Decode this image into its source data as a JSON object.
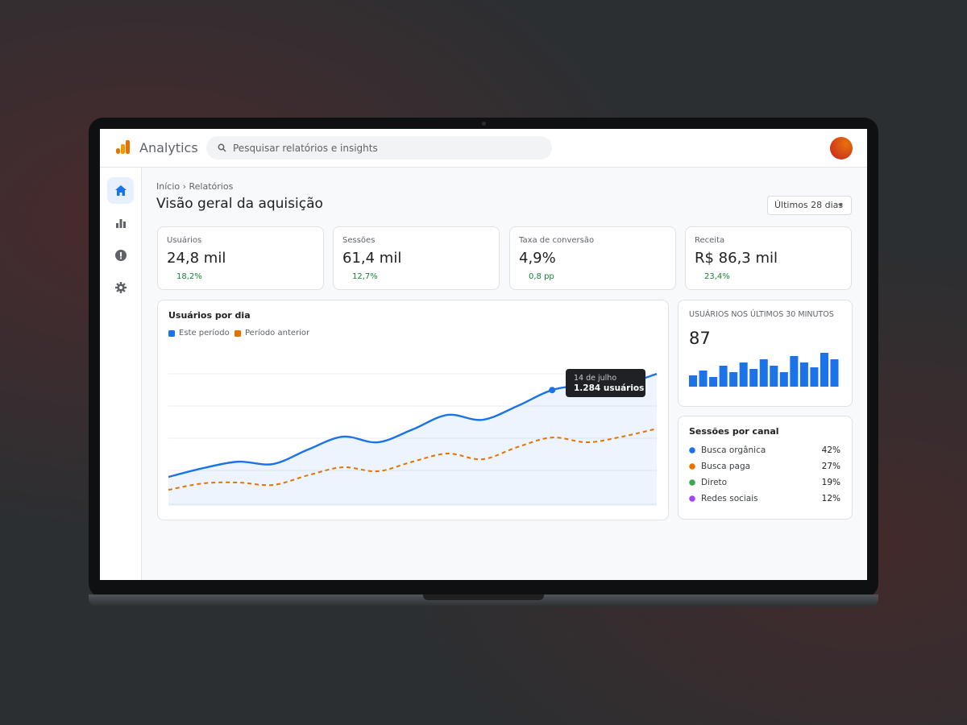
{
  "header": {
    "app_name": "Analytics",
    "search_placeholder": "Pesquisar relatórios e insights"
  },
  "breadcrumb": "Início › Relatórios",
  "page_title": "Visão geral da aquisição",
  "date_range": "Últimos 28 dias",
  "kpis": [
    {
      "label": "Usuários",
      "value": "24,8 mil",
      "change": "18,2%"
    },
    {
      "label": "Sessões",
      "value": "61,4 mil",
      "change": "12,7%"
    },
    {
      "label": "Taxa de conversão",
      "value": "4,9%",
      "change": "0,8 pp"
    },
    {
      "label": "Receita",
      "value": "R$ 86,3 mil",
      "change": "23,4%"
    }
  ],
  "users_chart": {
    "type": "line",
    "title": "Usuários por dia",
    "ylim": [
      0,
      1500
    ],
    "series": [
      {
        "name": "Este período",
        "color": "#1a73e8",
        "values": [
          321,
          419,
          490,
          464,
          624,
          767,
          705,
          847,
          1008,
          954,
          1106,
          1284,
          1338,
          1347,
          1463
        ]
      },
      {
        "name": "Período anterior",
        "color": "#e37400",
        "values": [
          178,
          250,
          259,
          232,
          339,
          428,
          384,
          490,
          580,
          517,
          651,
          758,
          705,
          767,
          856
        ]
      }
    ],
    "tooltip": {
      "date": "14 de julho",
      "value": "1.284 usuários"
    }
  },
  "realtime": {
    "type": "bar",
    "title": "USUÁRIOS NOS ÚLTIMOS 30 MINUTOS",
    "total": 87,
    "color": "#1a73e8",
    "ylim": [
      0,
      45
    ],
    "values": [
      14,
      20,
      12,
      26,
      18,
      30,
      22,
      34,
      26,
      18,
      38,
      30,
      24,
      42,
      34
    ]
  },
  "channels": {
    "title": "Sessões por canal",
    "items": [
      {
        "name": "Busca orgânica",
        "color": "#1a73e8",
        "share": "42%"
      },
      {
        "name": "Busca paga",
        "color": "#e37400",
        "share": "27%"
      },
      {
        "name": "Direto",
        "color": "#34a853",
        "share": "19%"
      },
      {
        "name": "Redes sociais",
        "color": "#a142f4",
        "share": "12%"
      }
    ]
  }
}
